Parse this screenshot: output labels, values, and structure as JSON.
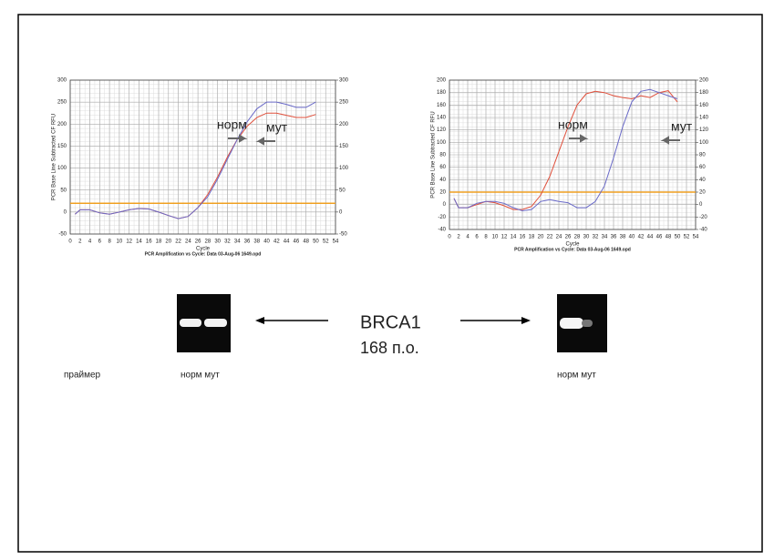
{
  "chart_data": [
    {
      "type": "line",
      "ylabel": "PCR Base Line Subtracted CF RFU",
      "xlabel": "Cycle",
      "subtitle": "PCR Amplification vs Cycle: Data 03-Aug-06 1649.opd",
      "x": [
        1,
        2,
        4,
        6,
        8,
        10,
        12,
        14,
        16,
        18,
        20,
        22,
        24,
        26,
        28,
        30,
        32,
        34,
        36,
        38,
        40,
        42,
        44,
        46,
        48,
        50
      ],
      "series": [
        {
          "color": "#e0503c",
          "values": [
            -5,
            5,
            5,
            -2,
            -5,
            0,
            5,
            8,
            7,
            0,
            -8,
            -15,
            -10,
            10,
            40,
            80,
            125,
            165,
            195,
            215,
            225,
            225,
            220,
            215,
            215,
            222
          ]
        },
        {
          "color": "#6a6ac8",
          "values": [
            -5,
            5,
            5,
            -2,
            -5,
            0,
            5,
            8,
            7,
            0,
            -8,
            -15,
            -10,
            10,
            35,
            75,
            120,
            165,
            205,
            235,
            250,
            250,
            245,
            238,
            238,
            250
          ]
        }
      ],
      "threshold": 20,
      "threshold_color": "#f0a020",
      "xlim": [
        0,
        54
      ],
      "xticks": [
        0,
        2,
        4,
        6,
        8,
        10,
        12,
        14,
        16,
        18,
        20,
        22,
        24,
        26,
        28,
        30,
        32,
        34,
        36,
        38,
        40,
        42,
        44,
        46,
        48,
        50,
        52,
        54
      ],
      "ylim": [
        -50,
        300
      ],
      "yticks": [
        -50,
        0,
        50,
        100,
        150,
        200,
        250,
        300
      ],
      "y2lim": [
        -50,
        300
      ],
      "y2ticks": [
        -50,
        0,
        50,
        100,
        150,
        200,
        250,
        300
      ],
      "grid": true,
      "annotations": [
        "норм",
        "мут"
      ]
    },
    {
      "type": "line",
      "ylabel": "PCR Base Line Subtracted CF RFU",
      "xlabel": "Cycle",
      "subtitle": "PCR Amplification vs Cycle: Data 03-Aug-06 1649.opd",
      "x": [
        1,
        2,
        4,
        6,
        8,
        10,
        12,
        14,
        16,
        18,
        20,
        22,
        24,
        26,
        28,
        30,
        32,
        34,
        36,
        38,
        40,
        42,
        44,
        46,
        48,
        50
      ],
      "series": [
        {
          "color": "#e0503c",
          "values": [
            10,
            -5,
            -5,
            0,
            5,
            3,
            -2,
            -8,
            -8,
            -3,
            15,
            45,
            85,
            125,
            160,
            178,
            182,
            180,
            175,
            172,
            170,
            175,
            172,
            180,
            183,
            165
          ]
        },
        {
          "color": "#6a6ac8",
          "values": [
            10,
            -5,
            -5,
            2,
            5,
            5,
            2,
            -5,
            -10,
            -8,
            5,
            8,
            5,
            3,
            -5,
            -5,
            5,
            30,
            75,
            125,
            165,
            182,
            185,
            180,
            175,
            170
          ]
        }
      ],
      "threshold": 20,
      "threshold_color": "#f0a020",
      "xlim": [
        0,
        54
      ],
      "xticks": [
        0,
        2,
        4,
        6,
        8,
        10,
        12,
        14,
        16,
        18,
        20,
        22,
        24,
        26,
        28,
        30,
        32,
        34,
        36,
        38,
        40,
        42,
        44,
        46,
        48,
        50,
        52,
        54
      ],
      "ylim": [
        -40,
        200
      ],
      "yticks": [
        -40,
        -20,
        0,
        20,
        40,
        60,
        80,
        100,
        120,
        140,
        160,
        180,
        200
      ],
      "y2lim": [
        -40,
        200
      ],
      "y2ticks": [
        -40,
        -20,
        0,
        20,
        40,
        60,
        80,
        100,
        120,
        140,
        160,
        180,
        200
      ],
      "grid": true,
      "annotations": [
        "норм",
        "мут"
      ]
    }
  ],
  "gene": "BRCA1",
  "size": "168 п.о.",
  "primer": "праймер",
  "lanes": [
    "норм мут",
    "норм мут"
  ]
}
